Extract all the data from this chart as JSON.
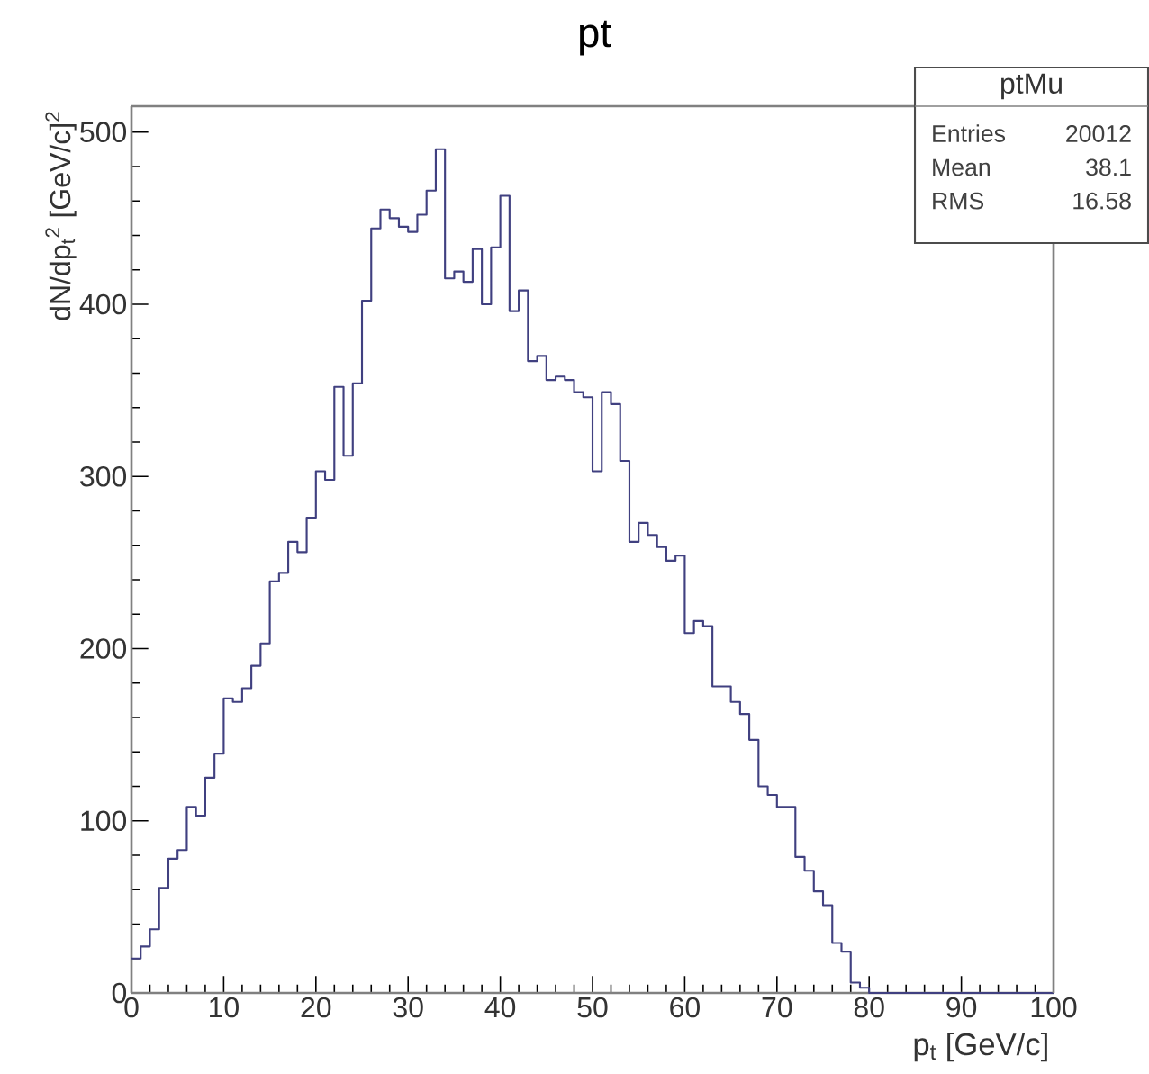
{
  "chart_data": {
    "type": "histogram",
    "title": "pt",
    "xlabel": "p$_{t}$ [GeV/c]",
    "ylabel": "dN/dp$_{t}$$^{2}$ [GeV/c]$^{2}$",
    "bins": [
      0,
      1,
      2,
      3,
      4,
      5,
      6,
      7,
      8,
      9,
      10,
      11,
      12,
      13,
      14,
      15,
      16,
      17,
      18,
      19,
      20,
      21,
      22,
      23,
      24,
      25,
      26,
      27,
      28,
      29,
      30,
      31,
      32,
      33,
      34,
      35,
      36,
      37,
      38,
      39,
      40,
      41,
      42,
      43,
      44,
      45,
      46,
      47,
      48,
      49,
      50,
      51,
      52,
      53,
      54,
      55,
      56,
      57,
      58,
      59,
      60,
      61,
      62,
      63,
      64,
      65,
      66,
      67,
      68,
      69,
      70,
      71,
      72,
      73,
      74,
      75,
      76,
      77,
      78,
      79,
      80,
      81,
      82,
      83,
      84,
      85,
      86,
      87,
      88,
      89,
      90,
      91,
      92,
      93,
      94,
      95,
      96,
      97,
      98,
      99,
      100
    ],
    "values": [
      20,
      27,
      37,
      61,
      78,
      83,
      108,
      103,
      125,
      139,
      171,
      169,
      177,
      190,
      203,
      239,
      244,
      262,
      256,
      276,
      303,
      298,
      352,
      312,
      354,
      402,
      444,
      455,
      450,
      445,
      442,
      452,
      466,
      490,
      415,
      419,
      413,
      432,
      400,
      433,
      463,
      396,
      408,
      367,
      370,
      356,
      358,
      356,
      349,
      346,
      303,
      349,
      342,
      309,
      262,
      273,
      266,
      259,
      251,
      254,
      209,
      216,
      213,
      178,
      178,
      169,
      162,
      147,
      120,
      115,
      108,
      108,
      79,
      71,
      59,
      51,
      29,
      24,
      6,
      3,
      0,
      0,
      0,
      0,
      0,
      0,
      0,
      0,
      0,
      0,
      0,
      0,
      0,
      0,
      0,
      0,
      0,
      0,
      0,
      0
    ],
    "color": "#404080",
    "xlim": [
      0,
      100
    ],
    "ylim": [
      0,
      515
    ],
    "xticks": [
      0,
      10,
      20,
      30,
      40,
      50,
      60,
      70,
      80,
      90,
      100
    ],
    "yticks": [
      0,
      100,
      200,
      300,
      400,
      500
    ],
    "grid": false,
    "annotations": [
      "ptMu",
      "Entries",
      "20012",
      "Mean",
      "38.1",
      "RMS",
      "16.58"
    ]
  }
}
